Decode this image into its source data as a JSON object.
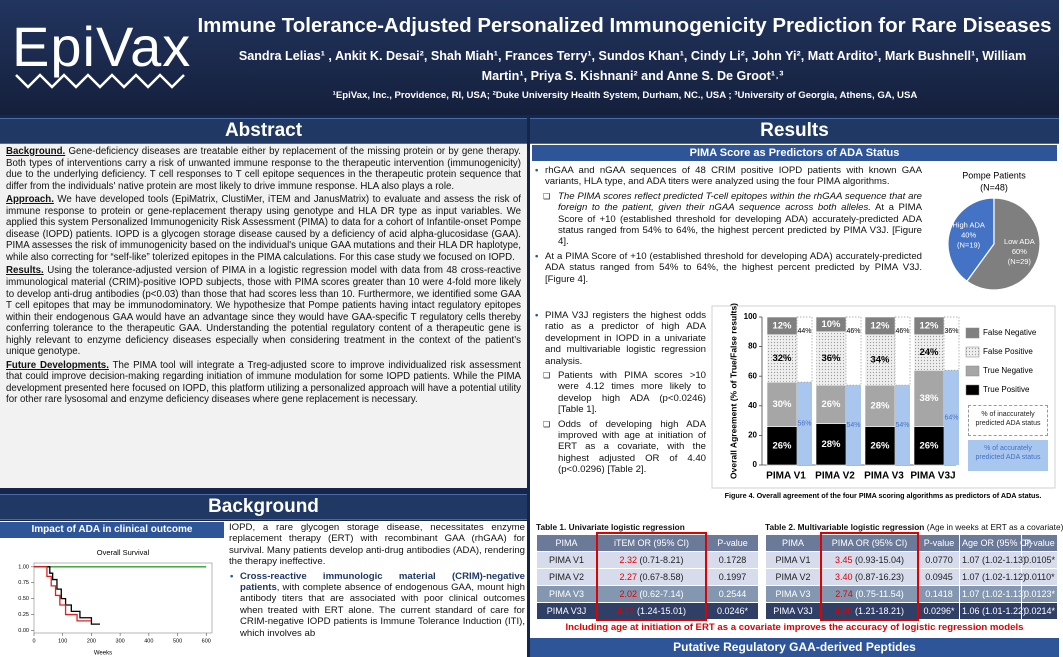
{
  "header": {
    "logo": "EpiVax",
    "title": "Immune Tolerance-Adjusted Personalized Immunogenicity Prediction for Rare Diseases",
    "authors": "Sandra Lelias¹ , Ankit K. Desai², Shah Miah¹, Frances Terry¹, Sundos Khan¹, Cindy Li², John Yi², Matt Ardito¹, Mark Bushnell¹, William Martin¹, Priya S. Kishnani² and Anne S. De Groot¹˒³",
    "affiliations": "¹EpiVax, Inc., Providence, RI, USA; ²Duke University Health System, Durham, NC., USA ; ³University of Georgia, Athens, GA, USA"
  },
  "abstract": {
    "heading": "Abstract",
    "paragraphs": [
      {
        "label": "Background.",
        "text": "Gene-deficiency diseases are treatable either by replacement of the missing protein or by gene therapy. Both types of interventions carry a risk of unwanted immune response to the therapeutic intervention (immunogenicity) due to the underlying deficiency. T cell responses to T cell epitope sequences in the therapeutic protein sequence that differ from the individuals' native protein are most likely to drive immune response. HLA also plays a role."
      },
      {
        "label": "Approach.",
        "text": "We have developed tools (EpiMatrix, ClustiMer, iTEM and JanusMatrix) to evaluate and assess the risk of immune response to protein or gene-replacement therapy using genotype and HLA DR type as input variables. We applied this system Personalized Immunogenicity Risk Assessment (PIMA) to data for a cohort of Infantile-onset Pompe disease (IOPD) patients. IOPD is a glycogen storage disease caused by a deficiency of acid alpha-glucosidase (GAA). PIMA assesses the risk of immunogenicity based on the individual's unique GAA mutations and their HLA DR haplotype, while also correcting for “self-like” tolerized epitopes in the PIMA calculations. For this case study we focused on IOPD."
      },
      {
        "label": "Results.",
        "text": "Using the tolerance-adjusted version of PIMA in a logistic regression model with data from 48 cross-reactive immunological material (CRIM)-positive IOPD subjects, those with PIMA scores greater than 10 were 4-fold more likely to develop anti-drug antibodies (p<0.03) than those that had scores less than 10. Furthermore, we identified some GAA T cell epitopes that may be immunodominatory. We hypothesize that Pompe patients having intact regulatory epitopes within their endogenous GAA would have an advantage since they would have GAA-specific T regulatory cells thereby conferring tolerance to the therapeutic GAA. Understanding the potential regulatory content of a therapeutic gene is highly relevant to enzyme deficiency diseases especially when considering treatment in the context of the patient’s unique genotype."
      },
      {
        "label": "Future Developments.",
        "text": "The PIMA tool will integrate a Treg-adjusted score to improve individualized risk assessment that could improve decision-making regarding initiation of immune modulation for some IOPD patients. While the PIMA development presented here focused on IOPD, this platform utilizing a personalized approach will have a potential utility for other rare lysosomal and enzyme deficiency diseases where gene replacement is necessary."
      }
    ]
  },
  "background": {
    "heading": "Background",
    "panel_title": "Impact of ADA in clinical outcome",
    "intro": "IOPD, a rare glycogen storage disease, necessitates enzyme replacement therapy (ERT) with recombinant GAA (rhGAA) for survival. Many patients develop anti-drug antibodies (ADA), rendering the therapy ineffective.",
    "bullet_bold": "Cross-reactive immunologic material (CRIM)-negative patients",
    "bullet_text": ", with complete absence of endogenous GAA, mount high antibody titers that are associated with poor clinical outcomes when treated with ERT alone. The current standard of care for CRIM-negative IOPD patients is Immune Tolerance Induction (ITI), which involves ab"
  },
  "results": {
    "heading": "Results",
    "panel_title": "PIMA Score as Predictors of ADA Status",
    "intro": "rhGAA and nGAA sequences of 48 CRIM positive IOPD patients with known GAA variants, HLA type, and ADA titers were analyzed using the four PIMA algorithms.",
    "intro_sub_italic": "The PIMA scores reflect predicted T-cell epitopes within the rhGAA sequence that are foreign to the patient, given their nGAA sequence across both alleles.",
    "intro_sub": "At a PIMA Score of +10 (established threshold for developing ADA) accurately-predicted ADA status ranged from 54% to 64%, the highest percent predicted by PIMA V3J. [Figure 4].",
    "threshold": "At a PIMA Score of +10 (established threshold for developing ADA) accurately-predicted ADA status ranged from 54% to 64%, the highest percent predicted by PIMA V3J. [Figure 4].",
    "odds": "PIMA V3J registers the highest odds ratio as a predictor of high ADA development in IOPD in a univariate and multivariable logistic regression analysis.",
    "odds_sub1": "Patients with PIMA scores >10 were 4.12 times more likely to develop high ADA (p<0.0246) [Table 1].",
    "odds_sub2": "Odds of developing high ADA improved with age at initiation of ERT as a covariate, with the highest adjusted OR of 4.40 (p<0.0296) [Table 2]."
  },
  "chart_data": [
    {
      "type": "line",
      "title": "Overall Survival",
      "xlabel": "Weeks",
      "xlim": [
        0,
        620
      ],
      "ylim": [
        -0.04,
        1.06
      ],
      "xticks": [
        0,
        100,
        200,
        300,
        400,
        500,
        600
      ],
      "yticks": [
        {
          "value": 1,
          "label": "1.00"
        },
        {
          "value": 0.75,
          "label": "0.75"
        },
        {
          "value": 0.5,
          "label": "0.50"
        },
        {
          "value": 0.25,
          "label": "0.25"
        },
        {
          "value": 0,
          "label": "0.00"
        }
      ],
      "series": [
        {
          "color": "#2ca02c",
          "x": [
            0,
            600
          ],
          "values": [
            1,
            1
          ]
        },
        {
          "color": "#000000",
          "x": [
            0,
            55,
            55,
            65,
            65,
            80,
            80,
            95,
            95,
            110,
            110,
            130,
            130,
            160,
            160,
            200,
            200,
            230
          ],
          "values": [
            1,
            1,
            0.9,
            0.9,
            0.8,
            0.8,
            0.65,
            0.65,
            0.5,
            0.5,
            0.4,
            0.4,
            0.3,
            0.3,
            0.2,
            0.2,
            0.1,
            0.1
          ]
        },
        {
          "color": "#e02020",
          "x": [
            0,
            45,
            45,
            60,
            60,
            75,
            75,
            90,
            90,
            110,
            110,
            150,
            150,
            200
          ],
          "values": [
            1,
            1,
            0.85,
            0.85,
            0.7,
            0.7,
            0.55,
            0.55,
            0.4,
            0.4,
            0.25,
            0.25,
            0.15,
            0.15
          ]
        }
      ]
    },
    {
      "type": "pie",
      "title": "Pompe Patients",
      "subtitle": "(N=48)",
      "categories": [
        "High ADA",
        "Low ADA"
      ],
      "values": [
        40,
        60
      ],
      "value_labels": [
        "40%",
        "60%"
      ],
      "annotations": [
        "(N=19)",
        "(N=29)"
      ],
      "colors": [
        "#4472c4",
        "#7f7f7f"
      ]
    },
    {
      "type": "bar",
      "stacked": true,
      "ylabel": "Overall Agreement (% of True/False results)",
      "caption": "Figure 4. Overall agreement of the four PIMA scoring algorithms as predictors of ADA status.",
      "categories": [
        "PIMA V1",
        "PIMA V2",
        "PIMA V3",
        "PIMA V3J"
      ],
      "ylim": [
        0,
        100
      ],
      "yticks": [
        0,
        20,
        40,
        60,
        80,
        100
      ],
      "series": [
        {
          "name": "True Positive",
          "color": "#000000",
          "values": [
            26,
            28,
            26,
            26
          ],
          "value_labels": [
            "26%",
            "28%",
            "26%",
            "26%"
          ]
        },
        {
          "name": "True Negative",
          "color": "#a6a6a6",
          "values": [
            30,
            26,
            28,
            38
          ],
          "value_labels": [
            "30%",
            "26%",
            "28%",
            "38%"
          ]
        },
        {
          "name": "False Positive",
          "color": "#e6e6e6",
          "values": [
            32,
            36,
            34,
            24
          ],
          "value_labels": [
            "32%",
            "36%",
            "34%",
            "24%"
          ]
        },
        {
          "name": "False Negative",
          "color": "#808080",
          "values": [
            12,
            10,
            12,
            12
          ],
          "value_labels": [
            "12%",
            "10%",
            "12%",
            "12%"
          ]
        }
      ],
      "accuracy_series": [
        {
          "name": "% of accurately predicted ADA status",
          "color": "#a9c6ee",
          "values": [
            56,
            54,
            54,
            64
          ],
          "value_labels": [
            "56%",
            "54%",
            "54%",
            "64%"
          ]
        },
        {
          "name": "% of inaccurately predicted ADA status",
          "color": "#ffffff",
          "values": [
            44,
            46,
            46,
            36
          ],
          "value_labels": [
            "44%",
            "46%",
            "46%",
            "36%"
          ]
        }
      ]
    }
  ],
  "tables": [
    {
      "title": "Table 1. Univariate logistic regression",
      "columns": [
        "PIMA",
        "iTEM OR (95% CI)",
        "P-value"
      ],
      "rows": [
        {
          "pima": "PIMA V1",
          "or": "2.32",
          "ci": "(0.71-8.21)",
          "p": "0.1728"
        },
        {
          "pima": "PIMA V2",
          "or": "2.27",
          "ci": "(0.67-8.58)",
          "p": "0.1997"
        },
        {
          "pima": "PIMA V3",
          "or": "2.02",
          "ci": "(0.62-7.14)",
          "p": "0.2544"
        },
        {
          "pima": "PIMA V3J",
          "or": "4.12",
          "ci": "(1.24-15.01)",
          "p": "0.0246*"
        }
      ]
    },
    {
      "title": "Table 2. Multivariable logistic regression",
      "title_note": "(Age in weeks at ERT as a covariate)",
      "columns": [
        "PIMA",
        "PIMA OR (95% CI)",
        "P-value",
        "Age OR (95% CI)",
        "P-value"
      ],
      "rows": [
        {
          "pima": "PIMA V1",
          "or": "3.45",
          "ci": "(0.93-15.04)",
          "p": "0.0770",
          "age": "1.07 (1.02-1.13)",
          "p2": "0.0105*"
        },
        {
          "pima": "PIMA V2",
          "or": "3.40",
          "ci": "(0.87-16.23)",
          "p": "0.0945",
          "age": "1.07 (1.02-1.12)",
          "p2": "0.0110*"
        },
        {
          "pima": "PIMA V3",
          "or": "2.74",
          "ci": "(0.75-11.54)",
          "p": "0.1418",
          "age": "1.07 (1.02-1.13)",
          "p2": "0.0123*"
        },
        {
          "pima": "PIMA V3J",
          "or": "4.40",
          "ci": "(1.21-18.21)",
          "p": "0.0296*",
          "age": "1.06 (1.01-1.22)",
          "p2": "0.0214*"
        }
      ]
    }
  ],
  "tables_note": "Including age at initiation of ERT as a covariate improves the accuracy of logistic regression models",
  "next_section": "Putative Regulatory GAA-derived Peptides"
}
